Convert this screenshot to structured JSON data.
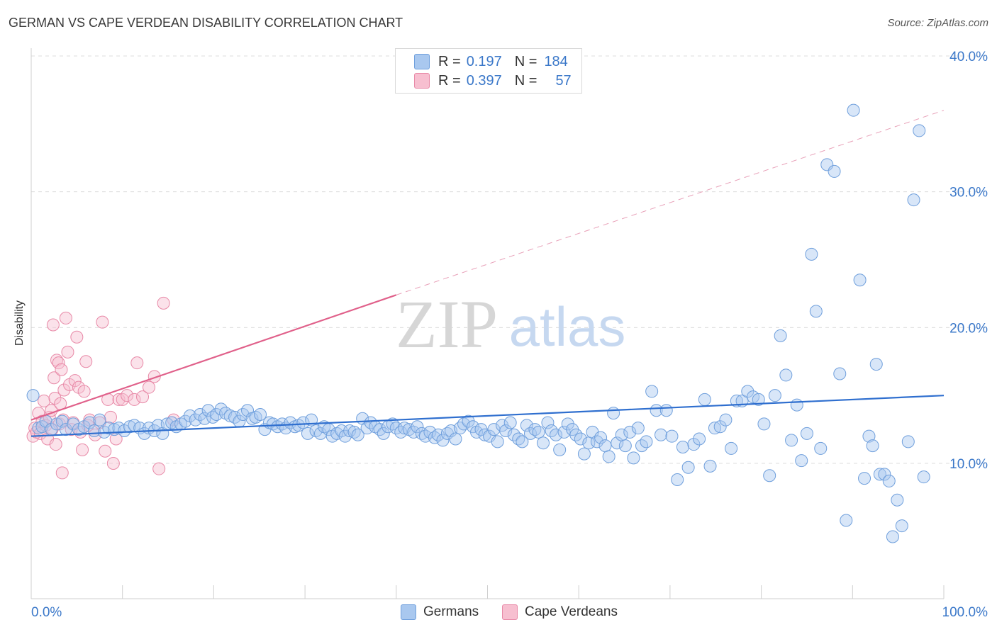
{
  "title": "GERMAN VS CAPE VERDEAN DISABILITY CORRELATION CHART",
  "source": "Source: ZipAtlas.com",
  "watermark": {
    "zip": "ZIP",
    "atlas": "atlas"
  },
  "legend": {
    "r_label": "R =",
    "n_label": "N =",
    "rows": [
      {
        "r": "0.197",
        "n": "184",
        "color": "#a9c8ef",
        "border": "#6f9fdc"
      },
      {
        "r": "0.397",
        "n": "57",
        "color": "#f7bfd0",
        "border": "#e889a7"
      }
    ]
  },
  "bottom_legend": [
    {
      "label": "Germans",
      "color": "#a9c8ef",
      "border": "#6f9fdc"
    },
    {
      "label": "Cape Verdeans",
      "color": "#f7bfd0",
      "border": "#e889a7"
    }
  ],
  "colors": {
    "blue_line": "#2f6fcf",
    "pink_line": "#e0608a",
    "tick_text": "#3b78c9",
    "grid": "#dcdcdc"
  },
  "chart_data": {
    "type": "scatter",
    "title": "GERMAN VS CAPE VERDEAN DISABILITY CORRELATION CHART",
    "xlabel": "",
    "ylabel": "Disability",
    "xlim": [
      0,
      100
    ],
    "ylim": [
      0,
      42
    ],
    "x_tick_labels": [
      "0.0%",
      "100.0%"
    ],
    "y_ticks": [
      10,
      20,
      30,
      40
    ],
    "y_tick_labels": [
      "10.0%",
      "20.0%",
      "30.0%",
      "40.0%"
    ],
    "grid": true,
    "legend_position": "top-center",
    "series": [
      {
        "name": "Germans",
        "color": "#a9c8ef",
        "trend": {
          "x": [
            0,
            100
          ],
          "y": [
            12.0,
            15.0
          ]
        },
        "points": [
          [
            0.2,
            15.0
          ],
          [
            0.8,
            12.6
          ],
          [
            1.2,
            12.7
          ],
          [
            1.6,
            13.1
          ],
          [
            2.2,
            12.5
          ],
          [
            2.8,
            12.9
          ],
          [
            3.4,
            13.1
          ],
          [
            3.8,
            12.5
          ],
          [
            4.6,
            12.9
          ],
          [
            5.2,
            12.5
          ],
          [
            5.8,
            12.7
          ],
          [
            6.4,
            13.0
          ],
          [
            6.9,
            12.4
          ],
          [
            7.5,
            13.2
          ],
          [
            8.0,
            12.3
          ],
          [
            8.5,
            12.6
          ],
          [
            9.1,
            12.5
          ],
          [
            9.6,
            12.6
          ],
          [
            10.2,
            12.4
          ],
          [
            10.8,
            12.7
          ],
          [
            11.3,
            12.8
          ],
          [
            11.9,
            12.6
          ],
          [
            12.4,
            12.2
          ],
          [
            12.9,
            12.6
          ],
          [
            13.5,
            12.4
          ],
          [
            13.9,
            12.8
          ],
          [
            14.4,
            12.2
          ],
          [
            14.9,
            12.9
          ],
          [
            15.4,
            13.0
          ],
          [
            15.9,
            12.7
          ],
          [
            16.4,
            12.9
          ],
          [
            16.9,
            13.1
          ],
          [
            17.4,
            13.5
          ],
          [
            18.0,
            13.2
          ],
          [
            18.5,
            13.6
          ],
          [
            19.0,
            13.3
          ],
          [
            19.4,
            13.9
          ],
          [
            19.9,
            13.4
          ],
          [
            20.3,
            13.6
          ],
          [
            20.8,
            14.0
          ],
          [
            21.3,
            13.7
          ],
          [
            21.8,
            13.5
          ],
          [
            22.3,
            13.4
          ],
          [
            22.8,
            13.1
          ],
          [
            23.2,
            13.6
          ],
          [
            23.7,
            13.9
          ],
          [
            24.2,
            13.3
          ],
          [
            24.6,
            13.4
          ],
          [
            25.1,
            13.6
          ],
          [
            25.6,
            12.5
          ],
          [
            26.1,
            13.0
          ],
          [
            26.5,
            12.9
          ],
          [
            27.0,
            12.7
          ],
          [
            27.5,
            12.9
          ],
          [
            27.9,
            12.6
          ],
          [
            28.4,
            13.0
          ],
          [
            28.9,
            12.7
          ],
          [
            29.3,
            12.8
          ],
          [
            29.8,
            13.0
          ],
          [
            30.3,
            12.2
          ],
          [
            30.7,
            13.2
          ],
          [
            31.2,
            12.4
          ],
          [
            31.7,
            12.2
          ],
          [
            32.1,
            12.7
          ],
          [
            32.6,
            12.5
          ],
          [
            33.0,
            12.0
          ],
          [
            33.5,
            12.2
          ],
          [
            34.0,
            12.4
          ],
          [
            34.4,
            12.0
          ],
          [
            34.9,
            12.4
          ],
          [
            35.4,
            12.3
          ],
          [
            35.8,
            12.1
          ],
          [
            36.3,
            13.3
          ],
          [
            36.8,
            12.6
          ],
          [
            37.2,
            13.0
          ],
          [
            37.7,
            12.7
          ],
          [
            38.2,
            12.5
          ],
          [
            38.6,
            12.2
          ],
          [
            39.1,
            12.7
          ],
          [
            39.6,
            12.9
          ],
          [
            40.0,
            12.6
          ],
          [
            40.5,
            12.3
          ],
          [
            40.9,
            12.6
          ],
          [
            41.4,
            12.5
          ],
          [
            41.9,
            12.3
          ],
          [
            42.3,
            12.7
          ],
          [
            42.8,
            12.2
          ],
          [
            43.2,
            12.0
          ],
          [
            43.7,
            12.3
          ],
          [
            44.2,
            11.9
          ],
          [
            44.6,
            12.1
          ],
          [
            45.1,
            11.7
          ],
          [
            45.6,
            12.2
          ],
          [
            46.0,
            12.4
          ],
          [
            46.5,
            11.8
          ],
          [
            47.0,
            12.6
          ],
          [
            47.4,
            12.9
          ],
          [
            47.9,
            13.1
          ],
          [
            48.4,
            12.7
          ],
          [
            48.8,
            12.3
          ],
          [
            49.3,
            12.5
          ],
          [
            49.7,
            12.1
          ],
          [
            50.2,
            12.0
          ],
          [
            50.7,
            12.5
          ],
          [
            51.1,
            11.6
          ],
          [
            51.6,
            12.8
          ],
          [
            52.0,
            12.4
          ],
          [
            52.5,
            13.0
          ],
          [
            52.9,
            12.1
          ],
          [
            53.4,
            11.8
          ],
          [
            53.8,
            11.6
          ],
          [
            54.3,
            12.8
          ],
          [
            54.7,
            12.2
          ],
          [
            55.2,
            12.5
          ],
          [
            55.6,
            12.3
          ],
          [
            56.1,
            11.5
          ],
          [
            56.6,
            13.0
          ],
          [
            57.0,
            12.4
          ],
          [
            57.5,
            12.1
          ],
          [
            57.9,
            11.0
          ],
          [
            58.4,
            12.3
          ],
          [
            58.8,
            12.9
          ],
          [
            59.3,
            12.5
          ],
          [
            59.7,
            12.1
          ],
          [
            60.2,
            11.8
          ],
          [
            60.6,
            10.7
          ],
          [
            61.1,
            11.5
          ],
          [
            61.5,
            12.3
          ],
          [
            62.0,
            11.6
          ],
          [
            62.4,
            11.9
          ],
          [
            62.9,
            11.3
          ],
          [
            63.3,
            10.5
          ],
          [
            63.8,
            13.7
          ],
          [
            64.2,
            11.5
          ],
          [
            64.7,
            12.1
          ],
          [
            65.1,
            11.3
          ],
          [
            65.6,
            12.3
          ],
          [
            66.0,
            10.4
          ],
          [
            66.5,
            12.6
          ],
          [
            66.9,
            11.3
          ],
          [
            67.4,
            11.6
          ],
          [
            68.0,
            15.3
          ],
          [
            68.5,
            13.9
          ],
          [
            69.0,
            12.1
          ],
          [
            69.6,
            13.9
          ],
          [
            70.2,
            12.0
          ],
          [
            70.8,
            8.8
          ],
          [
            71.4,
            11.2
          ],
          [
            72.0,
            9.7
          ],
          [
            72.6,
            11.4
          ],
          [
            73.2,
            11.8
          ],
          [
            73.8,
            14.7
          ],
          [
            74.4,
            9.8
          ],
          [
            74.9,
            12.6
          ],
          [
            75.5,
            12.7
          ],
          [
            76.1,
            13.2
          ],
          [
            76.7,
            11.1
          ],
          [
            77.3,
            14.6
          ],
          [
            77.9,
            14.6
          ],
          [
            78.5,
            15.3
          ],
          [
            79.1,
            14.9
          ],
          [
            79.7,
            14.7
          ],
          [
            80.3,
            12.9
          ],
          [
            80.9,
            9.1
          ],
          [
            81.5,
            15.0
          ],
          [
            82.1,
            19.4
          ],
          [
            82.7,
            16.5
          ],
          [
            83.3,
            11.7
          ],
          [
            83.9,
            14.3
          ],
          [
            84.4,
            10.2
          ],
          [
            85.0,
            12.2
          ],
          [
            85.5,
            25.4
          ],
          [
            86.0,
            21.2
          ],
          [
            86.5,
            11.1
          ],
          [
            87.2,
            32.0
          ],
          [
            88.0,
            31.5
          ],
          [
            88.6,
            16.6
          ],
          [
            89.3,
            5.8
          ],
          [
            90.1,
            36.0
          ],
          [
            90.8,
            23.5
          ],
          [
            91.3,
            8.9
          ],
          [
            91.8,
            12.0
          ],
          [
            92.2,
            11.3
          ],
          [
            92.6,
            17.3
          ],
          [
            93.0,
            9.2
          ],
          [
            93.5,
            9.2
          ],
          [
            94.0,
            8.7
          ],
          [
            94.4,
            4.6
          ],
          [
            94.9,
            7.3
          ],
          [
            95.4,
            5.4
          ],
          [
            96.1,
            11.6
          ],
          [
            96.7,
            29.4
          ],
          [
            97.3,
            34.5
          ],
          [
            97.8,
            9.0
          ]
        ]
      },
      {
        "name": "Cape Verdeans",
        "color": "#f7bfd0",
        "trend": {
          "x": [
            0,
            40
          ],
          "y": [
            13.2,
            22.4
          ]
        },
        "trend_extension": {
          "x": [
            40,
            100
          ],
          "y": [
            22.4,
            36.0
          ]
        },
        "points": [
          [
            0.2,
            12.0
          ],
          [
            0.4,
            12.6
          ],
          [
            0.6,
            12.3
          ],
          [
            0.8,
            13.7
          ],
          [
            1.0,
            12.2
          ],
          [
            1.2,
            13.1
          ],
          [
            1.4,
            14.6
          ],
          [
            1.6,
            12.8
          ],
          [
            1.8,
            11.8
          ],
          [
            2.0,
            13.4
          ],
          [
            2.2,
            13.9
          ],
          [
            2.3,
            12.5
          ],
          [
            2.4,
            20.2
          ],
          [
            2.5,
            16.3
          ],
          [
            2.6,
            14.8
          ],
          [
            2.7,
            11.4
          ],
          [
            2.8,
            17.6
          ],
          [
            3.0,
            17.4
          ],
          [
            3.1,
            12.9
          ],
          [
            3.2,
            14.4
          ],
          [
            3.3,
            16.9
          ],
          [
            3.4,
            9.3
          ],
          [
            3.5,
            13.2
          ],
          [
            3.6,
            15.4
          ],
          [
            3.8,
            20.7
          ],
          [
            4.0,
            18.2
          ],
          [
            4.2,
            15.8
          ],
          [
            4.4,
            12.5
          ],
          [
            4.6,
            13.0
          ],
          [
            4.8,
            16.1
          ],
          [
            5.0,
            19.3
          ],
          [
            5.2,
            15.6
          ],
          [
            5.4,
            12.3
          ],
          [
            5.6,
            11.0
          ],
          [
            5.8,
            15.3
          ],
          [
            6.0,
            17.5
          ],
          [
            6.2,
            12.8
          ],
          [
            6.4,
            13.2
          ],
          [
            7.0,
            12.1
          ],
          [
            7.5,
            13.0
          ],
          [
            7.8,
            20.4
          ],
          [
            8.1,
            10.9
          ],
          [
            8.4,
            14.7
          ],
          [
            8.7,
            13.4
          ],
          [
            9.0,
            10.0
          ],
          [
            9.3,
            11.8
          ],
          [
            9.6,
            14.7
          ],
          [
            10.0,
            14.7
          ],
          [
            10.5,
            15.0
          ],
          [
            11.3,
            14.7
          ],
          [
            11.6,
            17.4
          ],
          [
            12.2,
            14.9
          ],
          [
            12.9,
            15.6
          ],
          [
            13.5,
            16.4
          ],
          [
            14.0,
            9.6
          ],
          [
            14.5,
            21.8
          ],
          [
            15.6,
            13.2
          ]
        ]
      }
    ]
  }
}
